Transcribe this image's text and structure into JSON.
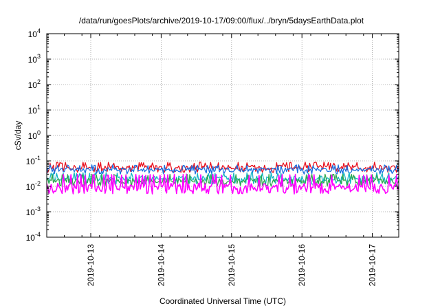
{
  "chart_data": {
    "type": "line",
    "title": "/data/run/goesPlots/archive/2019-10-17/09:00/flux/../bryn/5daysEarthData.plot",
    "xlabel": "Coordinated Universal Time (UTC)",
    "ylabel": "cSv/day",
    "yscale": "log",
    "ylim": [
      0.0001,
      10000
    ],
    "y_ticks": [
      {
        "base": "10",
        "exp": "-4"
      },
      {
        "base": "10",
        "exp": "-3"
      },
      {
        "base": "10",
        "exp": "-2"
      },
      {
        "base": "10",
        "exp": "-1"
      },
      {
        "base": "10",
        "exp": "0"
      },
      {
        "base": "10",
        "exp": "1"
      },
      {
        "base": "10",
        "exp": "2"
      },
      {
        "base": "10",
        "exp": "3"
      },
      {
        "base": "10",
        "exp": "4"
      }
    ],
    "xlim": [
      "2019-10-12 09:00",
      "2019-10-17 09:00"
    ],
    "x_ticks": [
      "2019-10-13",
      "2019-10-14",
      "2019-10-15",
      "2019-10-16",
      "2019-10-17"
    ],
    "grid": true,
    "legend": "none",
    "series": [
      {
        "color": "#e8101e",
        "level_typical": 0.055,
        "level_low": 0.035,
        "level_high": 0.09
      },
      {
        "color": "#1a6fe0",
        "level_typical": 0.045,
        "level_low": 0.03,
        "level_high": 0.07
      },
      {
        "color": "#18b6c4",
        "level_typical": 0.02,
        "level_low": 0.012,
        "level_high": 0.035
      },
      {
        "color": "#2fa84f",
        "level_typical": 0.016,
        "level_low": 0.01,
        "level_high": 0.03
      },
      {
        "color": "#ff00ff",
        "level_typical": 0.009,
        "level_low": 0.005,
        "level_high": 0.03
      }
    ]
  }
}
